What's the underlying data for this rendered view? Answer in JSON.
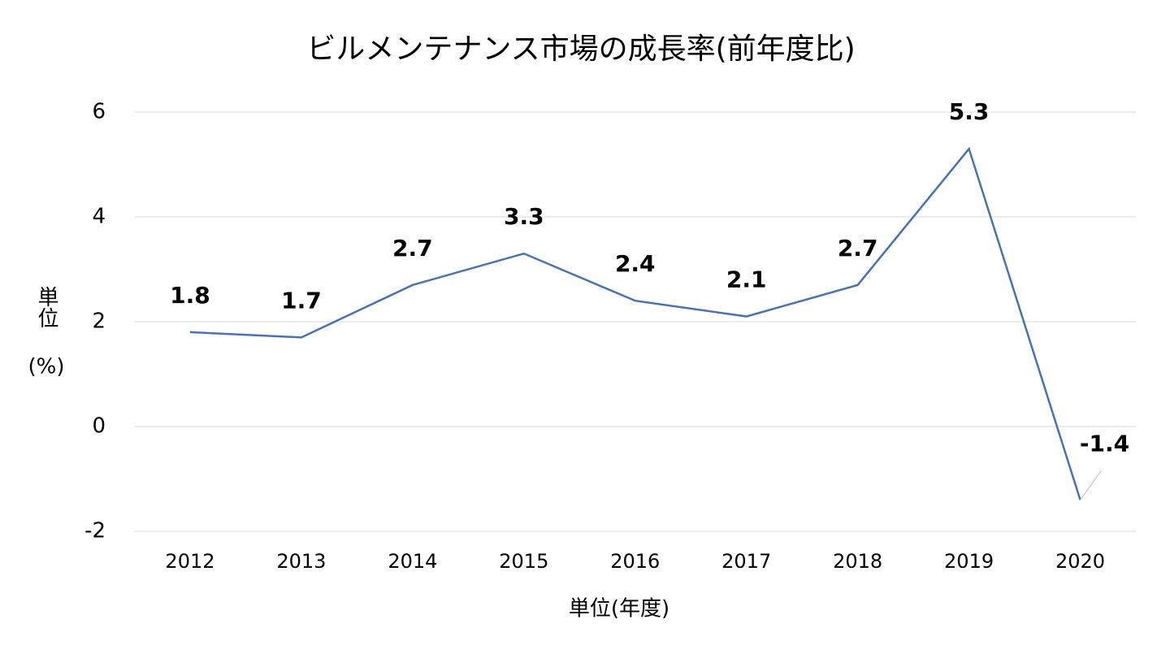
{
  "chart_data": {
    "type": "line",
    "title": "ビルメンテナンス市場の成長率(前年度比)",
    "x_label": "単位(年度)",
    "y_label": [
      "単位",
      "(%)"
    ],
    "categories": [
      "2012",
      "2013",
      "2014",
      "2015",
      "2016",
      "2017",
      "2018",
      "2019",
      "2020"
    ],
    "series": [
      {
        "color": "#4a72b0",
        "values": [
          1.8,
          1.7,
          2.7,
          3.3,
          2.4,
          2.1,
          2.7,
          5.3,
          -1.4
        ]
      }
    ],
    "ylim": [
      -2,
      6
    ],
    "yticks": [
      -2,
      0,
      2,
      4,
      6
    ],
    "grid": true
  }
}
